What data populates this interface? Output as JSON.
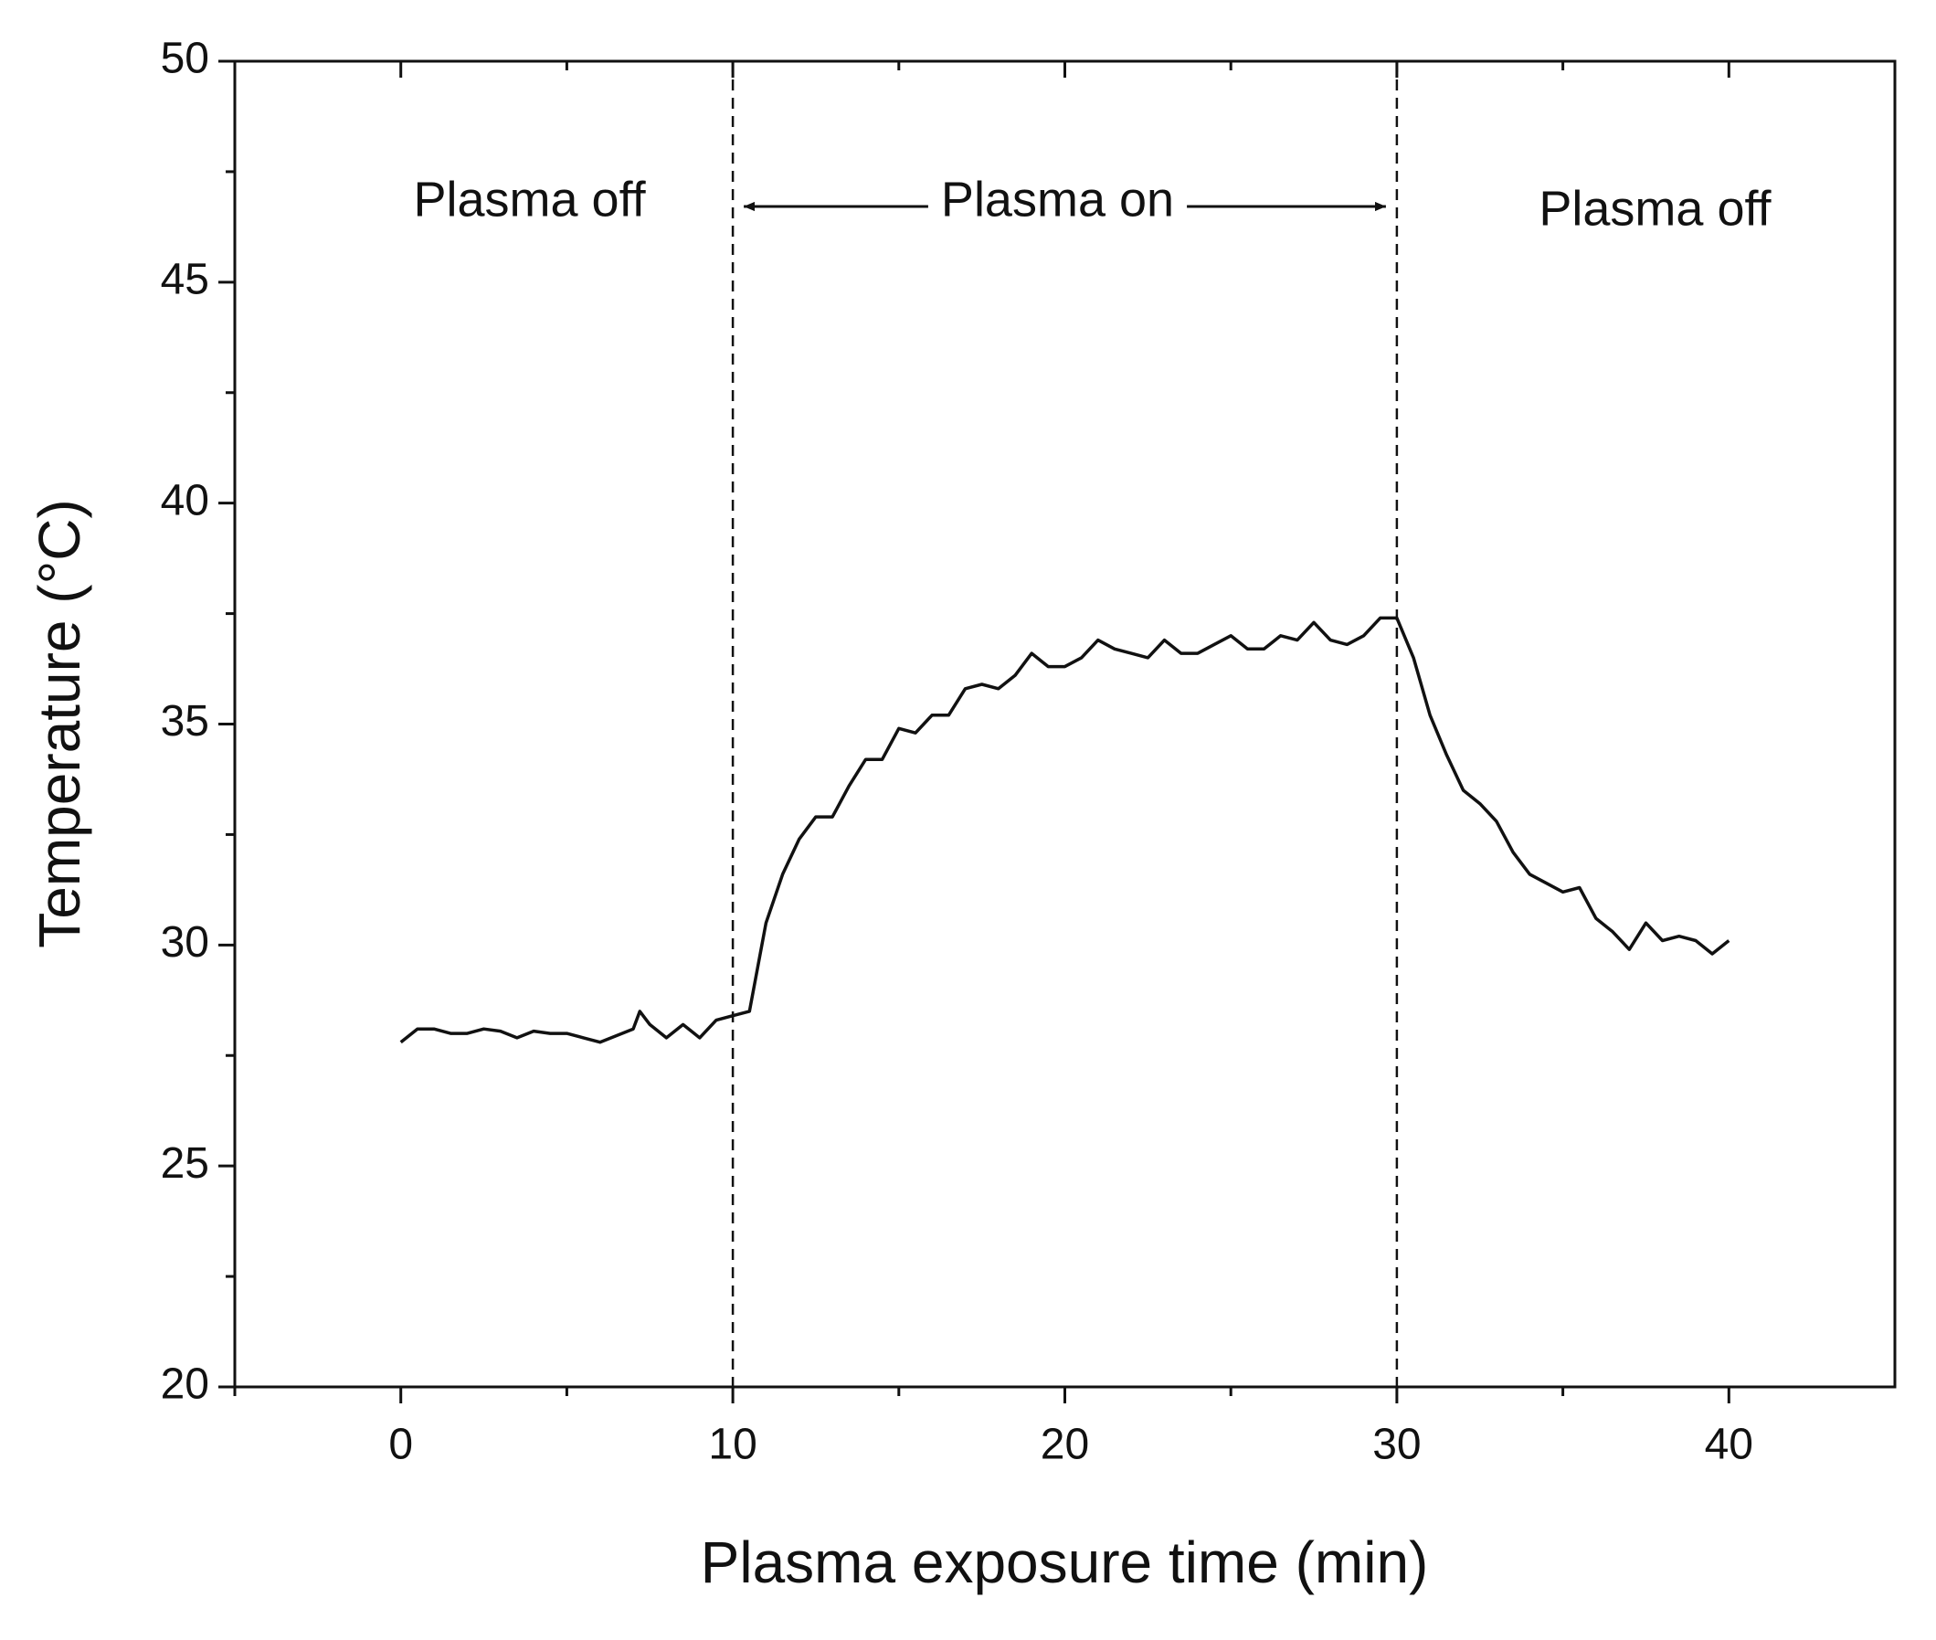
{
  "chart_data": {
    "type": "line",
    "xlabel": "Plasma exposure time (min)",
    "ylabel": "Temperature (°C)",
    "annotations": [
      "Plasma off",
      "Plasma on",
      "Plasma off"
    ],
    "vlines": [
      10,
      30
    ],
    "x": [
      0,
      0.5,
      1,
      1.5,
      2,
      2.5,
      3,
      3.5,
      4,
      4.5,
      5,
      5.5,
      6,
      6.5,
      7,
      7.2,
      7.5,
      8,
      8.5,
      9,
      9.5,
      10,
      10.5,
      11,
      11.5,
      12,
      12.5,
      13,
      13.5,
      14,
      14.5,
      15,
      15.5,
      16,
      16.5,
      17,
      17.5,
      18,
      18.5,
      19,
      19.5,
      20,
      20.5,
      21,
      21.5,
      22,
      22.5,
      23,
      23.5,
      24,
      24.5,
      25,
      25.5,
      26,
      26.5,
      27,
      27.5,
      28,
      28.5,
      29,
      29.5,
      30,
      30.5,
      31,
      31.5,
      32,
      32.5,
      33,
      33.5,
      34,
      34.5,
      35,
      35.5,
      36,
      36.5,
      37,
      37.5,
      38,
      38.5,
      39,
      39.5,
      40
    ],
    "series": [
      {
        "name": "Temperature",
        "color": "#111111",
        "values": [
          27.8,
          28.1,
          28.1,
          28.0,
          28.0,
          28.1,
          28.05,
          27.9,
          28.05,
          28.0,
          28.0,
          27.9,
          27.8,
          27.95,
          28.1,
          28.5,
          28.2,
          27.9,
          28.2,
          27.9,
          28.3,
          28.4,
          28.5,
          30.5,
          31.6,
          32.4,
          32.9,
          32.9,
          33.6,
          34.2,
          34.2,
          34.9,
          34.8,
          35.2,
          35.2,
          35.8,
          35.9,
          35.8,
          36.1,
          36.6,
          36.3,
          36.3,
          36.5,
          36.9,
          36.7,
          36.6,
          36.5,
          36.9,
          36.6,
          36.6,
          36.8,
          37.0,
          36.7,
          36.7,
          37.0,
          36.9,
          37.3,
          36.9,
          36.8,
          37.0,
          37.4,
          37.4,
          36.5,
          35.2,
          34.3,
          33.5,
          33.2,
          32.8,
          32.1,
          31.6,
          31.4,
          31.2,
          31.3,
          30.6,
          30.3,
          29.9,
          30.5,
          30.1,
          30.2,
          30.1,
          29.8,
          30.1
        ]
      }
    ],
    "xlim": [
      -5,
      45
    ],
    "xticks": [
      0,
      10,
      20,
      30,
      40
    ],
    "ylim": [
      20,
      50
    ],
    "yticks": [
      20,
      25,
      30,
      35,
      40,
      45,
      50
    ],
    "grid": false
  }
}
